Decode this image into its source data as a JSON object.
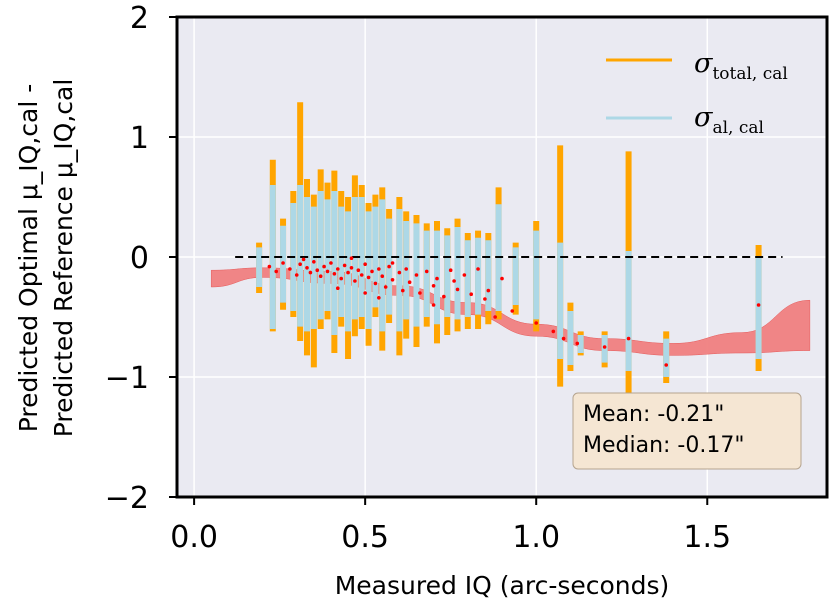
{
  "chart_data": {
    "type": "scatter",
    "title": "",
    "xlabel": "Measured IQ (arc-seconds)",
    "ylabel_line1": "Predicted Optimal μ_IQ,cal -",
    "ylabel_line2": "Predicted Reference μ_IQ,cal",
    "xlim": [
      -0.05,
      1.85
    ],
    "ylim": [
      -2,
      2
    ],
    "xticks": [
      0.0,
      0.5,
      1.0,
      1.5
    ],
    "xtick_labels": [
      "0.0",
      "0.5",
      "1.0",
      "1.5"
    ],
    "yticks": [
      -2,
      -1,
      0,
      1,
      2
    ],
    "ytick_labels": [
      "−2",
      "−1",
      "0",
      "1",
      "2"
    ],
    "grid": true,
    "reference_line": {
      "y": 0,
      "x_start": 0.12,
      "x_end": 1.72,
      "style": "dashed",
      "color": "#000000"
    },
    "legend": {
      "placement": "top-right",
      "entries": [
        {
          "name": "σ_total,cal",
          "main": "σ",
          "sub": "total, cal",
          "color": "#ffa500"
        },
        {
          "name": "σ_al,cal",
          "main": "σ",
          "sub": "al, cal",
          "color": "#add8e6"
        }
      ]
    },
    "stats_box": {
      "mean": "Mean: -0.21\"",
      "median": "Median: -0.17\""
    },
    "trend_band": {
      "color": "#f08080",
      "x": [
        0.05,
        0.2,
        0.4,
        0.6,
        0.8,
        1.0,
        1.2,
        1.4,
        1.6,
        1.8
      ],
      "lower": [
        -0.25,
        -0.17,
        -0.22,
        -0.32,
        -0.48,
        -0.66,
        -0.78,
        -0.82,
        -0.8,
        -0.78
      ],
      "upper": [
        -0.11,
        -0.09,
        -0.12,
        -0.24,
        -0.38,
        -0.56,
        -0.68,
        -0.72,
        -0.63,
        -0.36
      ]
    },
    "scatter_points": [
      {
        "x": 0.22,
        "y": -0.08
      },
      {
        "x": 0.24,
        "y": -0.12
      },
      {
        "x": 0.26,
        "y": -0.05
      },
      {
        "x": 0.28,
        "y": -0.1
      },
      {
        "x": 0.3,
        "y": -0.15
      },
      {
        "x": 0.31,
        "y": -0.06
      },
      {
        "x": 0.33,
        "y": -0.09
      },
      {
        "x": 0.34,
        "y": -0.13
      },
      {
        "x": 0.35,
        "y": -0.04
      },
      {
        "x": 0.36,
        "y": -0.11
      },
      {
        "x": 0.37,
        "y": -0.16
      },
      {
        "x": 0.38,
        "y": -0.08
      },
      {
        "x": 0.39,
        "y": -0.12
      },
      {
        "x": 0.4,
        "y": -0.05
      },
      {
        "x": 0.41,
        "y": -0.14
      },
      {
        "x": 0.42,
        "y": -0.1
      },
      {
        "x": 0.43,
        "y": -0.18
      },
      {
        "x": 0.44,
        "y": -0.07
      },
      {
        "x": 0.45,
        "y": -0.13
      },
      {
        "x": 0.46,
        "y": -0.09
      },
      {
        "x": 0.47,
        "y": -0.2
      },
      {
        "x": 0.48,
        "y": -0.11
      },
      {
        "x": 0.49,
        "y": -0.15
      },
      {
        "x": 0.5,
        "y": -0.06
      },
      {
        "x": 0.51,
        "y": -0.17
      },
      {
        "x": 0.52,
        "y": -0.12
      },
      {
        "x": 0.53,
        "y": -0.22
      },
      {
        "x": 0.54,
        "y": -0.1
      },
      {
        "x": 0.55,
        "y": -0.16
      },
      {
        "x": 0.56,
        "y": -0.25
      },
      {
        "x": 0.57,
        "y": -0.08
      },
      {
        "x": 0.58,
        "y": -0.19
      },
      {
        "x": 0.6,
        "y": -0.13
      },
      {
        "x": 0.61,
        "y": -0.28
      },
      {
        "x": 0.62,
        "y": -0.1
      },
      {
        "x": 0.63,
        "y": -0.21
      },
      {
        "x": 0.65,
        "y": -0.15
      },
      {
        "x": 0.66,
        "y": -0.3
      },
      {
        "x": 0.68,
        "y": -0.12
      },
      {
        "x": 0.7,
        "y": -0.24
      },
      {
        "x": 0.71,
        "y": -0.18
      },
      {
        "x": 0.73,
        "y": -0.33
      },
      {
        "x": 0.75,
        "y": -0.11
      },
      {
        "x": 0.77,
        "y": -0.27
      },
      {
        "x": 0.79,
        "y": -0.15
      },
      {
        "x": 0.81,
        "y": -0.31
      },
      {
        "x": 0.83,
        "y": -0.1
      },
      {
        "x": 0.85,
        "y": -0.35
      },
      {
        "x": 0.88,
        "y": -0.5
      },
      {
        "x": 0.93,
        "y": -0.45
      },
      {
        "x": 1.05,
        "y": -0.62
      },
      {
        "x": 1.08,
        "y": -0.68
      },
      {
        "x": 1.12,
        "y": -0.72
      },
      {
        "x": 1.2,
        "y": -0.75
      },
      {
        "x": 1.27,
        "y": -0.68
      },
      {
        "x": 1.38,
        "y": -0.9
      },
      {
        "x": 1.65,
        "y": -0.4
      },
      {
        "x": 0.32,
        "y": -0.02
      },
      {
        "x": 0.42,
        "y": -0.26
      },
      {
        "x": 0.5,
        "y": -0.3
      },
      {
        "x": 0.58,
        "y": -0.05
      },
      {
        "x": 0.7,
        "y": -0.4
      },
      {
        "x": 0.76,
        "y": -0.2
      },
      {
        "x": 0.86,
        "y": -0.28
      },
      {
        "x": 0.9,
        "y": -0.18
      },
      {
        "x": 1.0,
        "y": -0.55
      },
      {
        "x": 0.46,
        "y": -0.01
      },
      {
        "x": 0.54,
        "y": -0.34
      }
    ],
    "error_bars": [
      {
        "x": 0.19,
        "total": [
          -0.3,
          0.12
        ],
        "al": [
          -0.25,
          0.08
        ]
      },
      {
        "x": 0.23,
        "total": [
          -0.62,
          0.81
        ],
        "al": [
          -0.6,
          0.6
        ]
      },
      {
        "x": 0.26,
        "total": [
          -0.44,
          0.32
        ],
        "al": [
          -0.38,
          0.26
        ]
      },
      {
        "x": 0.29,
        "total": [
          -0.5,
          0.55
        ],
        "al": [
          -0.45,
          0.45
        ]
      },
      {
        "x": 0.31,
        "total": [
          -0.7,
          1.29
        ],
        "al": [
          -0.58,
          0.6
        ]
      },
      {
        "x": 0.33,
        "total": [
          -0.82,
          0.65
        ],
        "al": [
          -0.62,
          0.5
        ]
      },
      {
        "x": 0.35,
        "total": [
          -0.92,
          0.52
        ],
        "al": [
          -0.6,
          0.42
        ]
      },
      {
        "x": 0.37,
        "total": [
          -0.6,
          0.73
        ],
        "al": [
          -0.52,
          0.55
        ]
      },
      {
        "x": 0.39,
        "total": [
          -0.52,
          0.62
        ],
        "al": [
          -0.45,
          0.48
        ]
      },
      {
        "x": 0.41,
        "total": [
          -0.8,
          0.72
        ],
        "al": [
          -0.65,
          0.55
        ]
      },
      {
        "x": 0.43,
        "total": [
          -0.58,
          0.55
        ],
        "al": [
          -0.5,
          0.42
        ]
      },
      {
        "x": 0.45,
        "total": [
          -0.85,
          0.5
        ],
        "al": [
          -0.62,
          0.38
        ]
      },
      {
        "x": 0.47,
        "total": [
          -0.66,
          0.68
        ],
        "al": [
          -0.52,
          0.5
        ]
      },
      {
        "x": 0.49,
        "total": [
          -0.6,
          0.6
        ],
        "al": [
          -0.5,
          0.5
        ]
      },
      {
        "x": 0.51,
        "total": [
          -0.74,
          0.45
        ],
        "al": [
          -0.6,
          0.38
        ]
      },
      {
        "x": 0.53,
        "total": [
          -0.5,
          0.52
        ],
        "al": [
          -0.42,
          0.42
        ]
      },
      {
        "x": 0.55,
        "total": [
          -0.78,
          0.58
        ],
        "al": [
          -0.62,
          0.48
        ]
      },
      {
        "x": 0.57,
        "total": [
          -0.55,
          0.4
        ],
        "al": [
          -0.48,
          0.32
        ]
      },
      {
        "x": 0.6,
        "total": [
          -0.82,
          0.5
        ],
        "al": [
          -0.62,
          0.4
        ]
      },
      {
        "x": 0.62,
        "total": [
          -0.68,
          0.38
        ],
        "al": [
          -0.52,
          0.3
        ]
      },
      {
        "x": 0.65,
        "total": [
          -0.75,
          0.35
        ],
        "al": [
          -0.58,
          0.28
        ]
      },
      {
        "x": 0.68,
        "total": [
          -0.58,
          0.28
        ],
        "al": [
          -0.5,
          0.22
        ]
      },
      {
        "x": 0.71,
        "total": [
          -0.72,
          0.3
        ],
        "al": [
          -0.56,
          0.22
        ]
      },
      {
        "x": 0.74,
        "total": [
          -0.65,
          0.24
        ],
        "al": [
          -0.5,
          0.18
        ]
      },
      {
        "x": 0.77,
        "total": [
          -0.62,
          0.32
        ],
        "al": [
          -0.52,
          0.25
        ]
      },
      {
        "x": 0.8,
        "total": [
          -0.6,
          0.2
        ],
        "al": [
          -0.5,
          0.14
        ]
      },
      {
        "x": 0.83,
        "total": [
          -0.6,
          0.22
        ],
        "al": [
          -0.48,
          0.16
        ]
      },
      {
        "x": 0.86,
        "total": [
          -0.56,
          0.2
        ],
        "al": [
          -0.45,
          0.14
        ]
      },
      {
        "x": 0.89,
        "total": [
          -0.52,
          0.58
        ],
        "al": [
          -0.45,
          0.44
        ]
      },
      {
        "x": 0.94,
        "total": [
          -0.48,
          0.12
        ],
        "al": [
          -0.4,
          0.08
        ]
      },
      {
        "x": 1.0,
        "total": [
          -0.62,
          0.3
        ],
        "al": [
          -0.52,
          0.22
        ]
      },
      {
        "x": 1.07,
        "total": [
          -1.08,
          0.93
        ],
        "al": [
          -0.85,
          0.12
        ]
      },
      {
        "x": 1.1,
        "total": [
          -0.95,
          -0.38
        ],
        "al": [
          -0.9,
          -0.45
        ]
      },
      {
        "x": 1.13,
        "total": [
          -0.82,
          -0.62
        ],
        "al": [
          -0.8,
          -0.65
        ]
      },
      {
        "x": 1.2,
        "total": [
          -0.92,
          -0.62
        ],
        "al": [
          -0.88,
          -0.65
        ]
      },
      {
        "x": 1.27,
        "total": [
          -1.18,
          0.88
        ],
        "al": [
          -0.95,
          0.05
        ]
      },
      {
        "x": 1.38,
        "total": [
          -1.05,
          -0.62
        ],
        "al": [
          -1.0,
          -0.68
        ]
      },
      {
        "x": 1.65,
        "total": [
          -0.95,
          0.1
        ],
        "al": [
          -0.85,
          0.0
        ]
      }
    ]
  }
}
